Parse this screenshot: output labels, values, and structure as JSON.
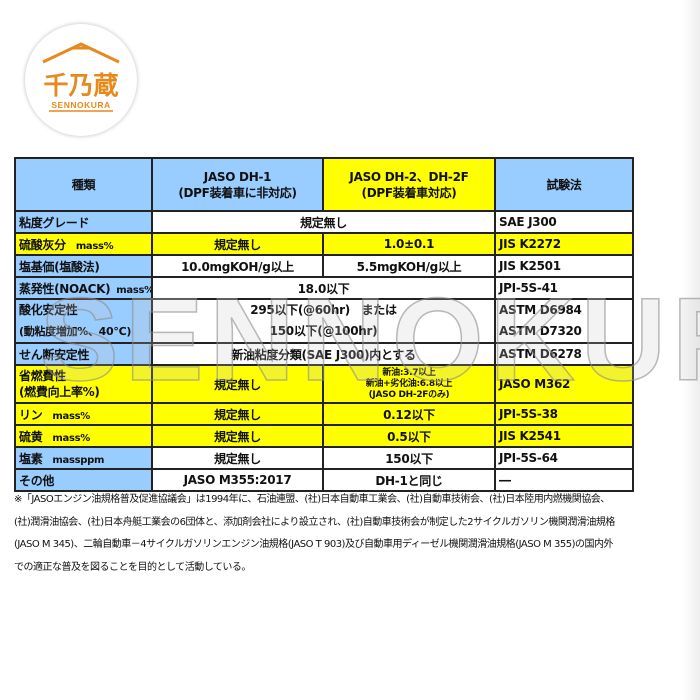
{
  "logo": {
    "brand_jp": "千乃蔵",
    "brand_en": "SENNOKURA",
    "color": "#e8891c"
  },
  "watermark": "SENNOKURA",
  "colors": {
    "header_blue": "#99ccff",
    "highlight": "#ffff00"
  },
  "table": {
    "headers": {
      "type": "種類",
      "dh1_line1": "JASO DH-1",
      "dh1_line2": "(DPF装着車に非対応)",
      "dh2_line1": "JASO DH-2、DH-2F",
      "dh2_line2": "(DPF装着車対応)",
      "method": "試験法"
    },
    "rows": {
      "viscosity": {
        "label": "粘度グレード",
        "value": "規定無し",
        "method": "SAE J300"
      },
      "ash": {
        "label": "硫酸灰分",
        "unit": "mass%",
        "dh1": "規定無し",
        "dh2": "1.0±0.1",
        "method": "JIS K2272"
      },
      "base": {
        "label": "塩基価(塩酸法)",
        "dh1": "10.0mgKOH/g以上",
        "dh2": "5.5mgKOH/g以上",
        "method": "JIS K2501"
      },
      "evap": {
        "label": "蒸発性(NOACK)",
        "unit": "mass%",
        "value": "18.0以下",
        "method": "JPI-5S-41"
      },
      "oxid": {
        "label1": "酸化安定性",
        "label2": "(動粘度増加%、40℃)",
        "value1": "295以下(@60hr)　または",
        "value2": "150以下(@100hr)",
        "method1": "ASTM D6984",
        "method2": "ASTM D7320"
      },
      "shear": {
        "label": "せん断安定性",
        "value": "新油粘度分類(SAE J300)内とする",
        "method": "ASTM D6278"
      },
      "fuel": {
        "label1": "省燃費性",
        "label2": "(燃費向上率%)",
        "dh1": "規定無し",
        "dh2_1": "新油:3.7以上",
        "dh2_2": "新油+劣化油:6.8以上",
        "dh2_3": "(JASO DH-2Fのみ)",
        "method": "JASO M362"
      },
      "phos": {
        "label": "リン",
        "unit": "mass%",
        "dh1": "規定無し",
        "dh2": "0.12以下",
        "method": "JPI-5S-38"
      },
      "sulfur": {
        "label": "硫黄",
        "unit": "mass%",
        "dh1": "規定無し",
        "dh2": "0.5以下",
        "method": "JIS K2541"
      },
      "chlorine": {
        "label": "塩素",
        "unit": "massppm",
        "dh1": "規定無し",
        "dh2": "150以下",
        "method": "JPI-5S-64"
      },
      "other": {
        "label": "その他",
        "dh1": "JASO M355:2017",
        "dh2": "DH-1と同じ",
        "method": "―"
      }
    }
  },
  "footnote": [
    "※「JASOエンジン油規格普及促進協議会」は1994年に、石油連盟、(社)日本自動車工業会、(社)自動車技術会、(社)日本陸用内燃機関協会、",
    "(社)潤滑油協会、(社)日本舟艇工業会の6団体と、添加剤会社により設立され、(社)自動車技術会が制定した2サイクルガソリン機関潤滑油規格",
    "(JASO M 345)、二輪自動車－4サイクルガソリンエンジン油規格(JASO T 903)及び自動車用ディーゼル機関潤滑油規格(JASO M 355)の国内外",
    "での適正な普及を図ることを目的として活動している。"
  ]
}
